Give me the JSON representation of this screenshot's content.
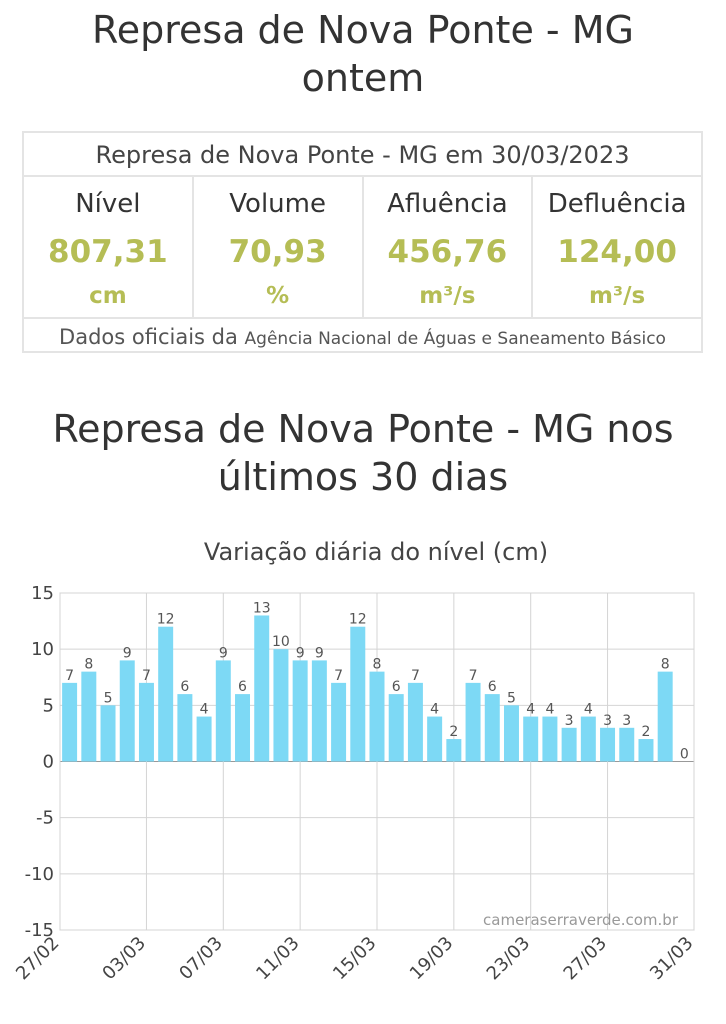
{
  "header": {
    "title_line1": "Represa de Nova Ponte - MG",
    "title_line2": "ontem"
  },
  "stats": {
    "heading": "Represa de Nova Ponte - MG em 30/03/2023",
    "items": [
      {
        "label": "Nível",
        "value": "807,31",
        "unit": "cm"
      },
      {
        "label": "Volume",
        "value": "70,93",
        "unit": "%"
      },
      {
        "label": "Afluência",
        "value": "456,76",
        "unit": "m³/s"
      },
      {
        "label": "Defluência",
        "value": "124,00",
        "unit": "m³/s"
      }
    ],
    "footer_prefix": "Dados oficiais da",
    "footer_source": "Agência Nacional de Águas e Saneamento Básico"
  },
  "chart_section": {
    "title_line1": "Represa de Nova Ponte - MG nos",
    "title_line2": "últimos 30 dias"
  },
  "chart_data": {
    "type": "bar",
    "title": "Variação diária do nível (cm)",
    "xlabel": "",
    "ylabel": "",
    "ylim": [
      -15,
      15
    ],
    "yticks": [
      15,
      10,
      5,
      0,
      -5,
      -10,
      -15
    ],
    "grid": true,
    "bar_color": "#7dd9f5",
    "watermark": "cameraserraverde.com.br",
    "x_start": "27/02",
    "x_end": "31/03",
    "x_tick_labels": [
      "27/02",
      "03/03",
      "07/03",
      "11/03",
      "15/03",
      "19/03",
      "23/03",
      "27/03",
      "31/03"
    ],
    "categories": [
      "27/02",
      "28/02",
      "01/03",
      "02/03",
      "03/03",
      "04/03",
      "05/03",
      "06/03",
      "07/03",
      "08/03",
      "09/03",
      "10/03",
      "11/03",
      "12/03",
      "13/03",
      "14/03",
      "15/03",
      "16/03",
      "17/03",
      "18/03",
      "19/03",
      "20/03",
      "21/03",
      "22/03",
      "23/03",
      "24/03",
      "25/03",
      "26/03",
      "27/03",
      "28/03",
      "29/03",
      "30/03",
      "31/03"
    ],
    "values": [
      7,
      8,
      5,
      9,
      7,
      12,
      6,
      4,
      9,
      6,
      13,
      10,
      9,
      9,
      7,
      12,
      8,
      6,
      7,
      4,
      2,
      7,
      6,
      5,
      4,
      4,
      3,
      4,
      3,
      3,
      2,
      8,
      0
    ]
  }
}
